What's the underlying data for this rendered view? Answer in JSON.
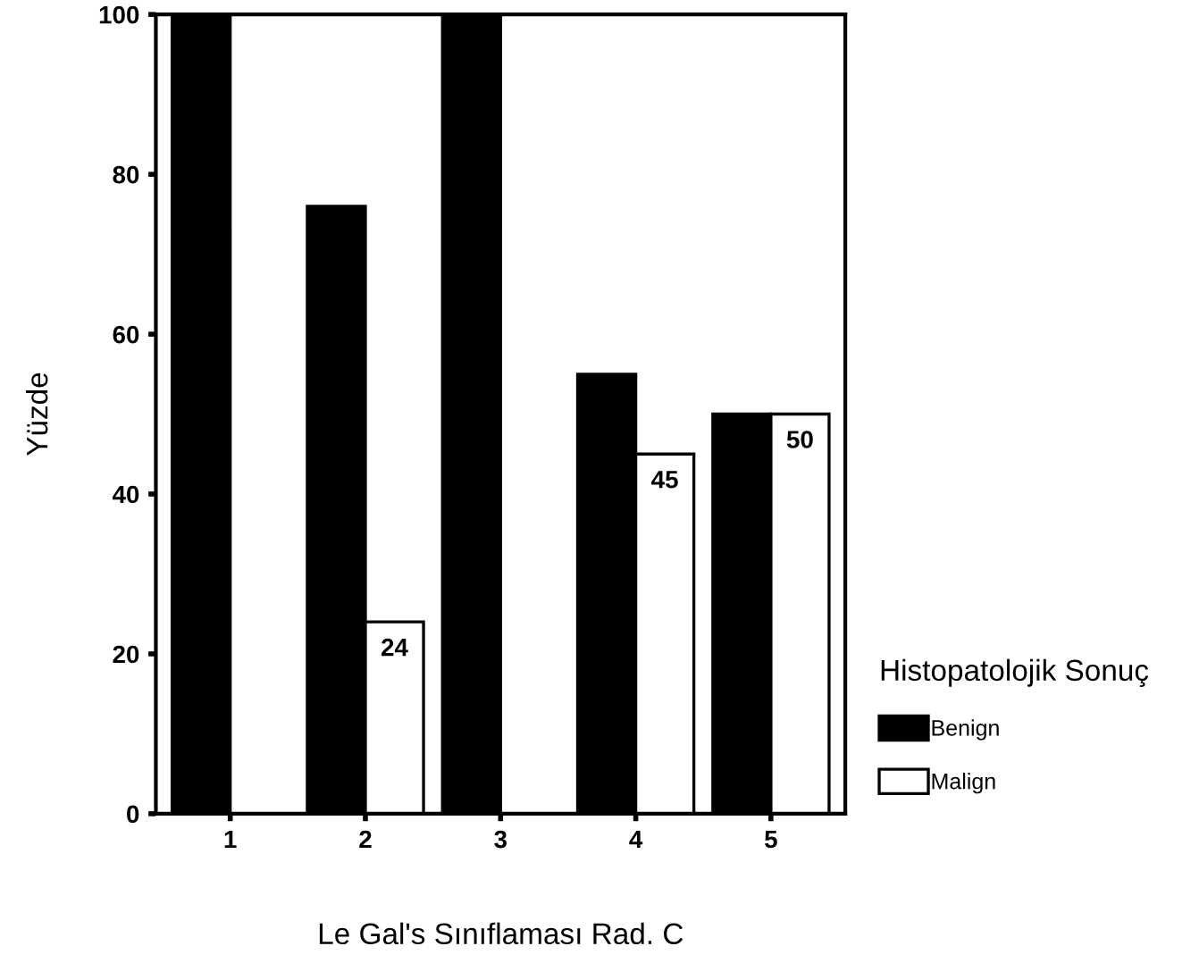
{
  "chart_data": {
    "type": "bar",
    "xlabel": "Le Gal's Sınıflaması Rad. C",
    "ylabel": "Yüzde",
    "legend_title": "Histopatolojik Sonuç",
    "categories": [
      "1",
      "2",
      "3",
      "4",
      "5"
    ],
    "series": [
      {
        "name": "Benign",
        "color": "#000000",
        "values": [
          100,
          76,
          100,
          55,
          50
        ]
      },
      {
        "name": "Malign",
        "color": "#ffffff",
        "values": [
          null,
          24,
          null,
          45,
          50
        ],
        "value_labels": [
          null,
          "24",
          null,
          "45",
          "50"
        ]
      }
    ],
    "ylim": [
      0,
      100
    ],
    "yticks": [
      0,
      20,
      40,
      60,
      80,
      100
    ],
    "grid": false,
    "legend": "right"
  }
}
